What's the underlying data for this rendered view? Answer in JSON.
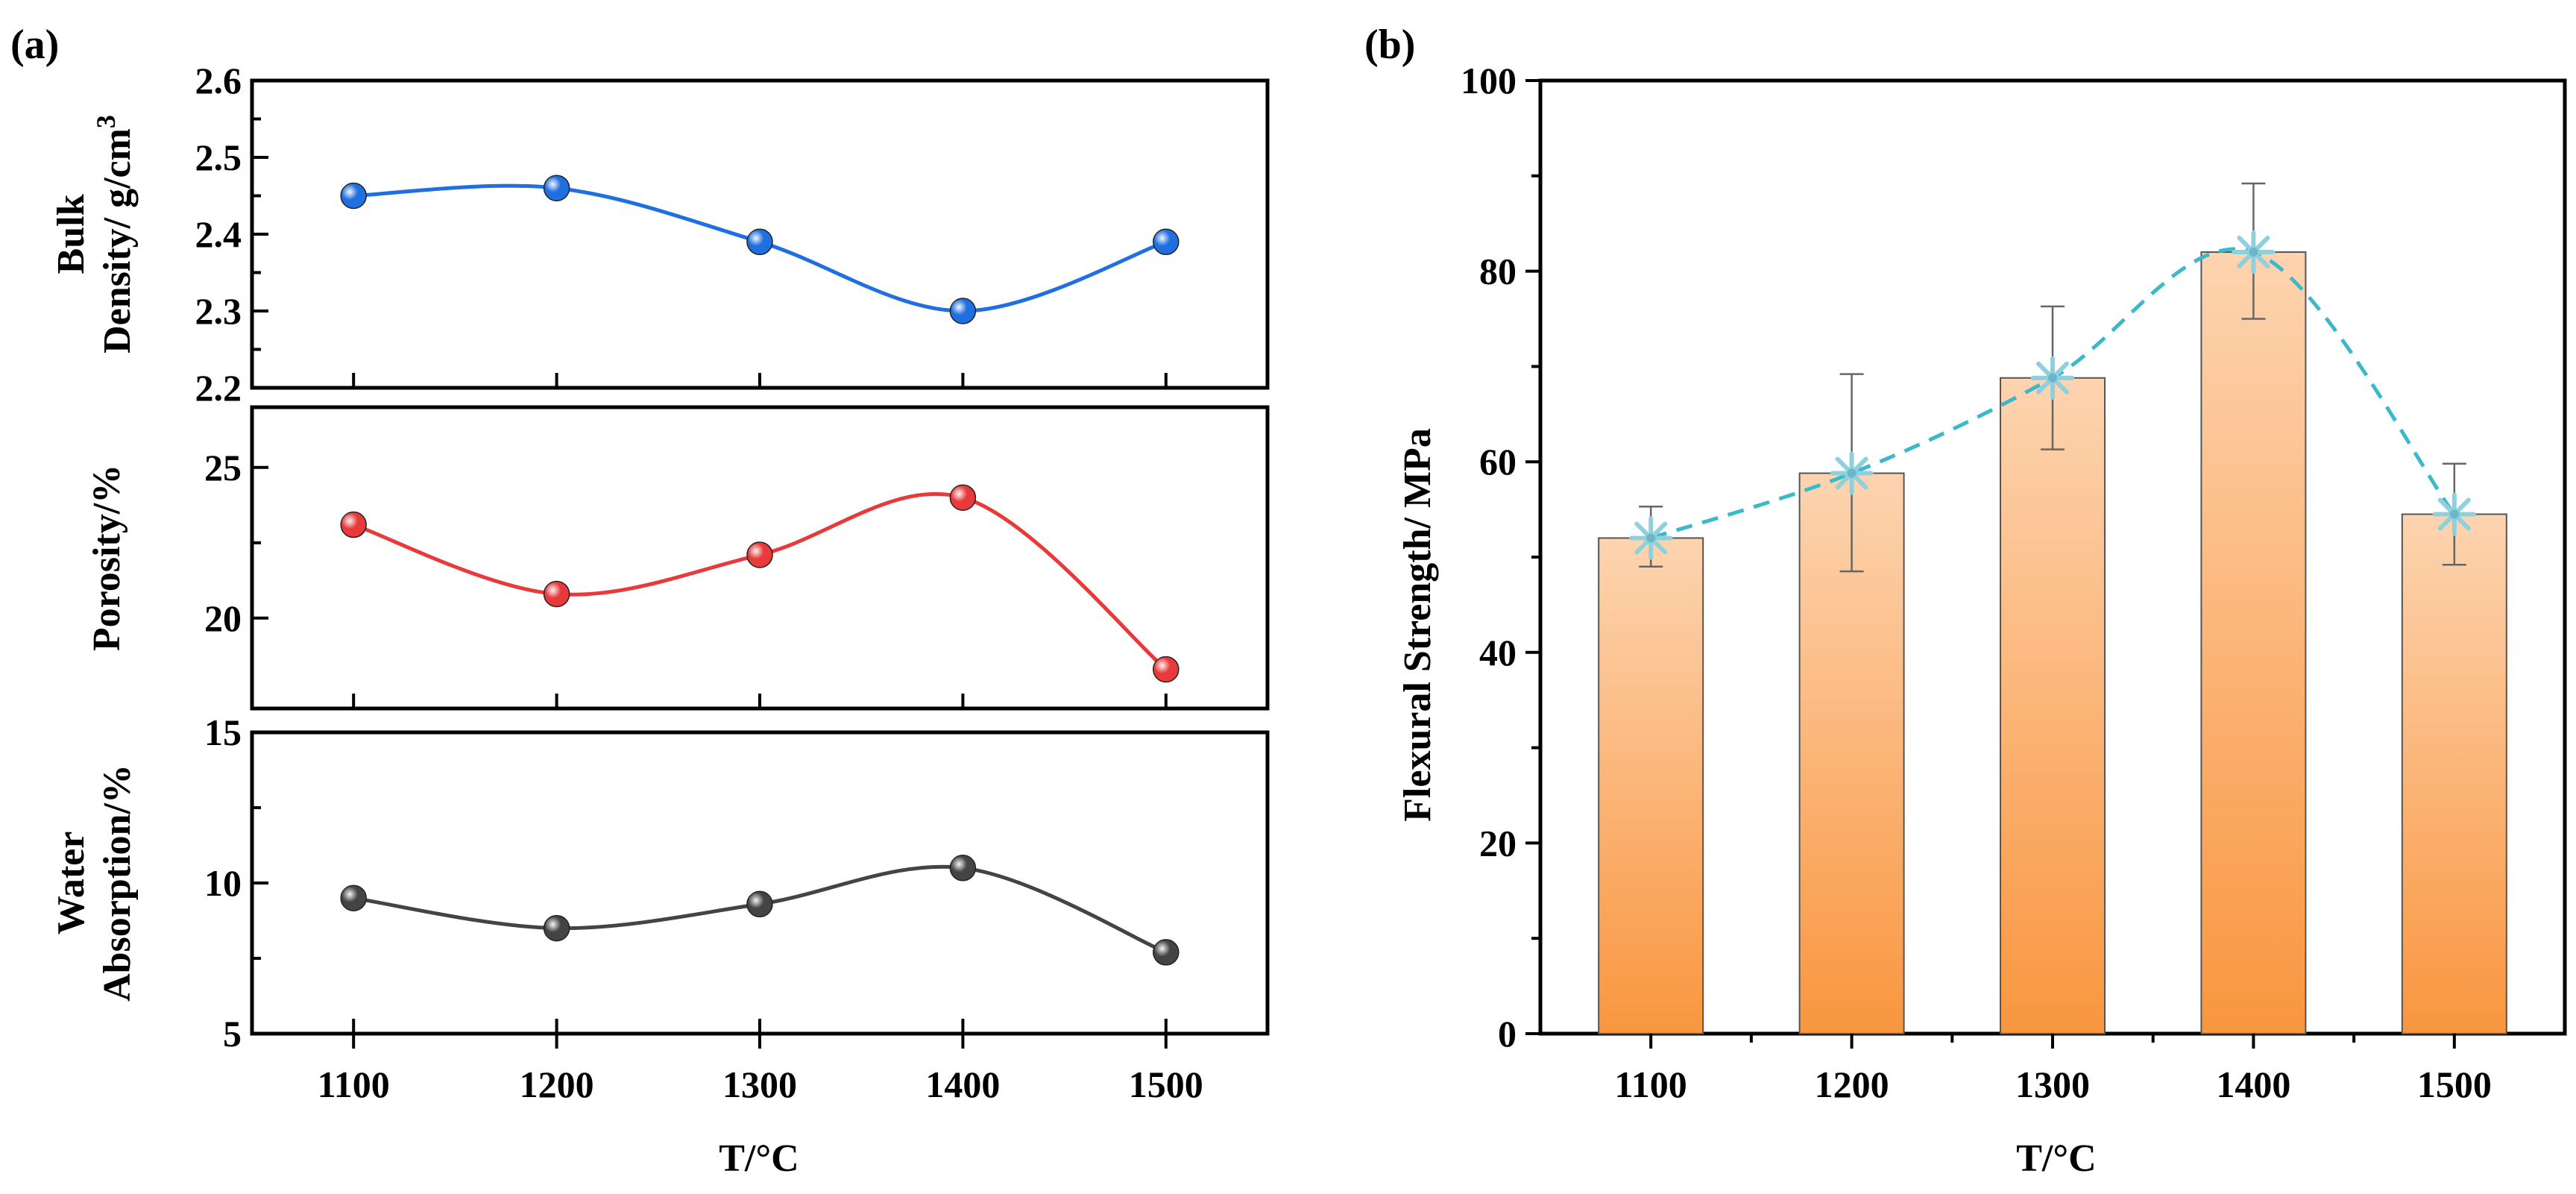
{
  "chart_data": [
    {
      "panel": "(a)",
      "type": "line",
      "xlabel": "T/°C",
      "x": [
        1100,
        1200,
        1300,
        1400,
        1500
      ],
      "x_ticks": [
        "1100",
        "1200",
        "1300",
        "1400",
        "1500"
      ],
      "subplots": [
        {
          "name": "bulk-density",
          "ylabel_lines": [
            "Bulk",
            "Density/ g/cm"
          ],
          "ylabel_superscript": "3",
          "values": [
            2.45,
            2.46,
            2.39,
            2.3,
            2.39
          ],
          "ylim": [
            2.2,
            2.6
          ],
          "y_ticks": [
            "2.2",
            "2.3",
            "2.4",
            "2.5",
            "2.6"
          ],
          "color": "#1f6fe0"
        },
        {
          "name": "porosity",
          "ylabel_lines": [
            "Porosity/%"
          ],
          "values": [
            23.1,
            20.8,
            22.1,
            24.0,
            18.3
          ],
          "ylim": [
            17,
            27
          ],
          "y_ticks": [
            "20",
            "25"
          ],
          "color": "#e83a3a"
        },
        {
          "name": "water-absorption",
          "ylabel_lines": [
            "Water",
            "Absorption/%"
          ],
          "values": [
            9.5,
            8.5,
            9.3,
            10.5,
            7.7
          ],
          "ylim": [
            5,
            15
          ],
          "y_ticks": [
            "5",
            "10",
            "15"
          ],
          "color": "#444444"
        }
      ]
    },
    {
      "panel": "(b)",
      "type": "bar",
      "xlabel": "T/°C",
      "ylabel": "Flexural Strength/ MPa",
      "categories": [
        "1100",
        "1200",
        "1300",
        "1400",
        "1500"
      ],
      "values": [
        52,
        58.8,
        68.8,
        82.0,
        54.5
      ],
      "error_upper": [
        55.3,
        69.2,
        76.3,
        89.2,
        59.8
      ],
      "error_lower": [
        49.0,
        48.5,
        61.3,
        75.0,
        49.2
      ],
      "ylim": [
        0,
        100
      ],
      "y_ticks": [
        "0",
        "20",
        "40",
        "60",
        "80",
        "100"
      ],
      "bar_color_top": "#fdd4b0",
      "bar_color_bottom": "#f9963f",
      "line_color": "#3bb8c9",
      "marker_color": "#8fd0de"
    }
  ]
}
